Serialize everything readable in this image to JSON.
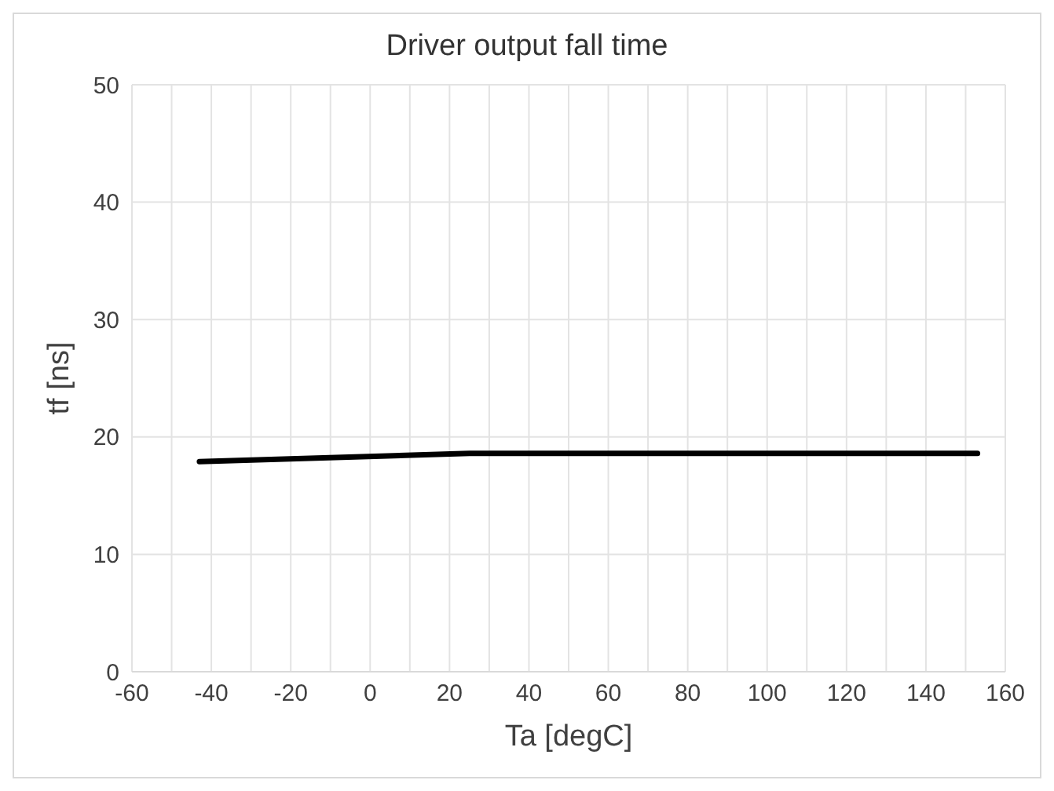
{
  "chart_data": {
    "type": "line",
    "title": "Driver output fall time",
    "xlabel": "Ta [degC]",
    "ylabel": "tf [ns]",
    "x": [
      -43,
      25,
      153
    ],
    "series": [
      {
        "color": "#000000",
        "values": [
          17.9,
          18.6,
          18.6
        ]
      }
    ],
    "xlim": [
      -60,
      160
    ],
    "xticks": [
      -60,
      {
        "value": -50,
        "label": null
      },
      -40,
      {
        "value": -30,
        "label": null
      },
      -20,
      {
        "value": -10,
        "label": null
      },
      0,
      {
        "value": 10,
        "label": null
      },
      20,
      {
        "value": 30,
        "label": null
      },
      40,
      {
        "value": 50,
        "label": null
      },
      60,
      {
        "value": 70,
        "label": null
      },
      80,
      {
        "value": 90,
        "label": null
      },
      100,
      {
        "value": 110,
        "label": null
      },
      120,
      {
        "value": 130,
        "label": null
      },
      140,
      {
        "value": 150,
        "label": null
      },
      160
    ],
    "ylim": [
      0,
      50
    ],
    "yticks": [
      0,
      10,
      20,
      30,
      40,
      50
    ],
    "grid": true,
    "legend": false,
    "marker": "none",
    "line_style": "solid"
  }
}
